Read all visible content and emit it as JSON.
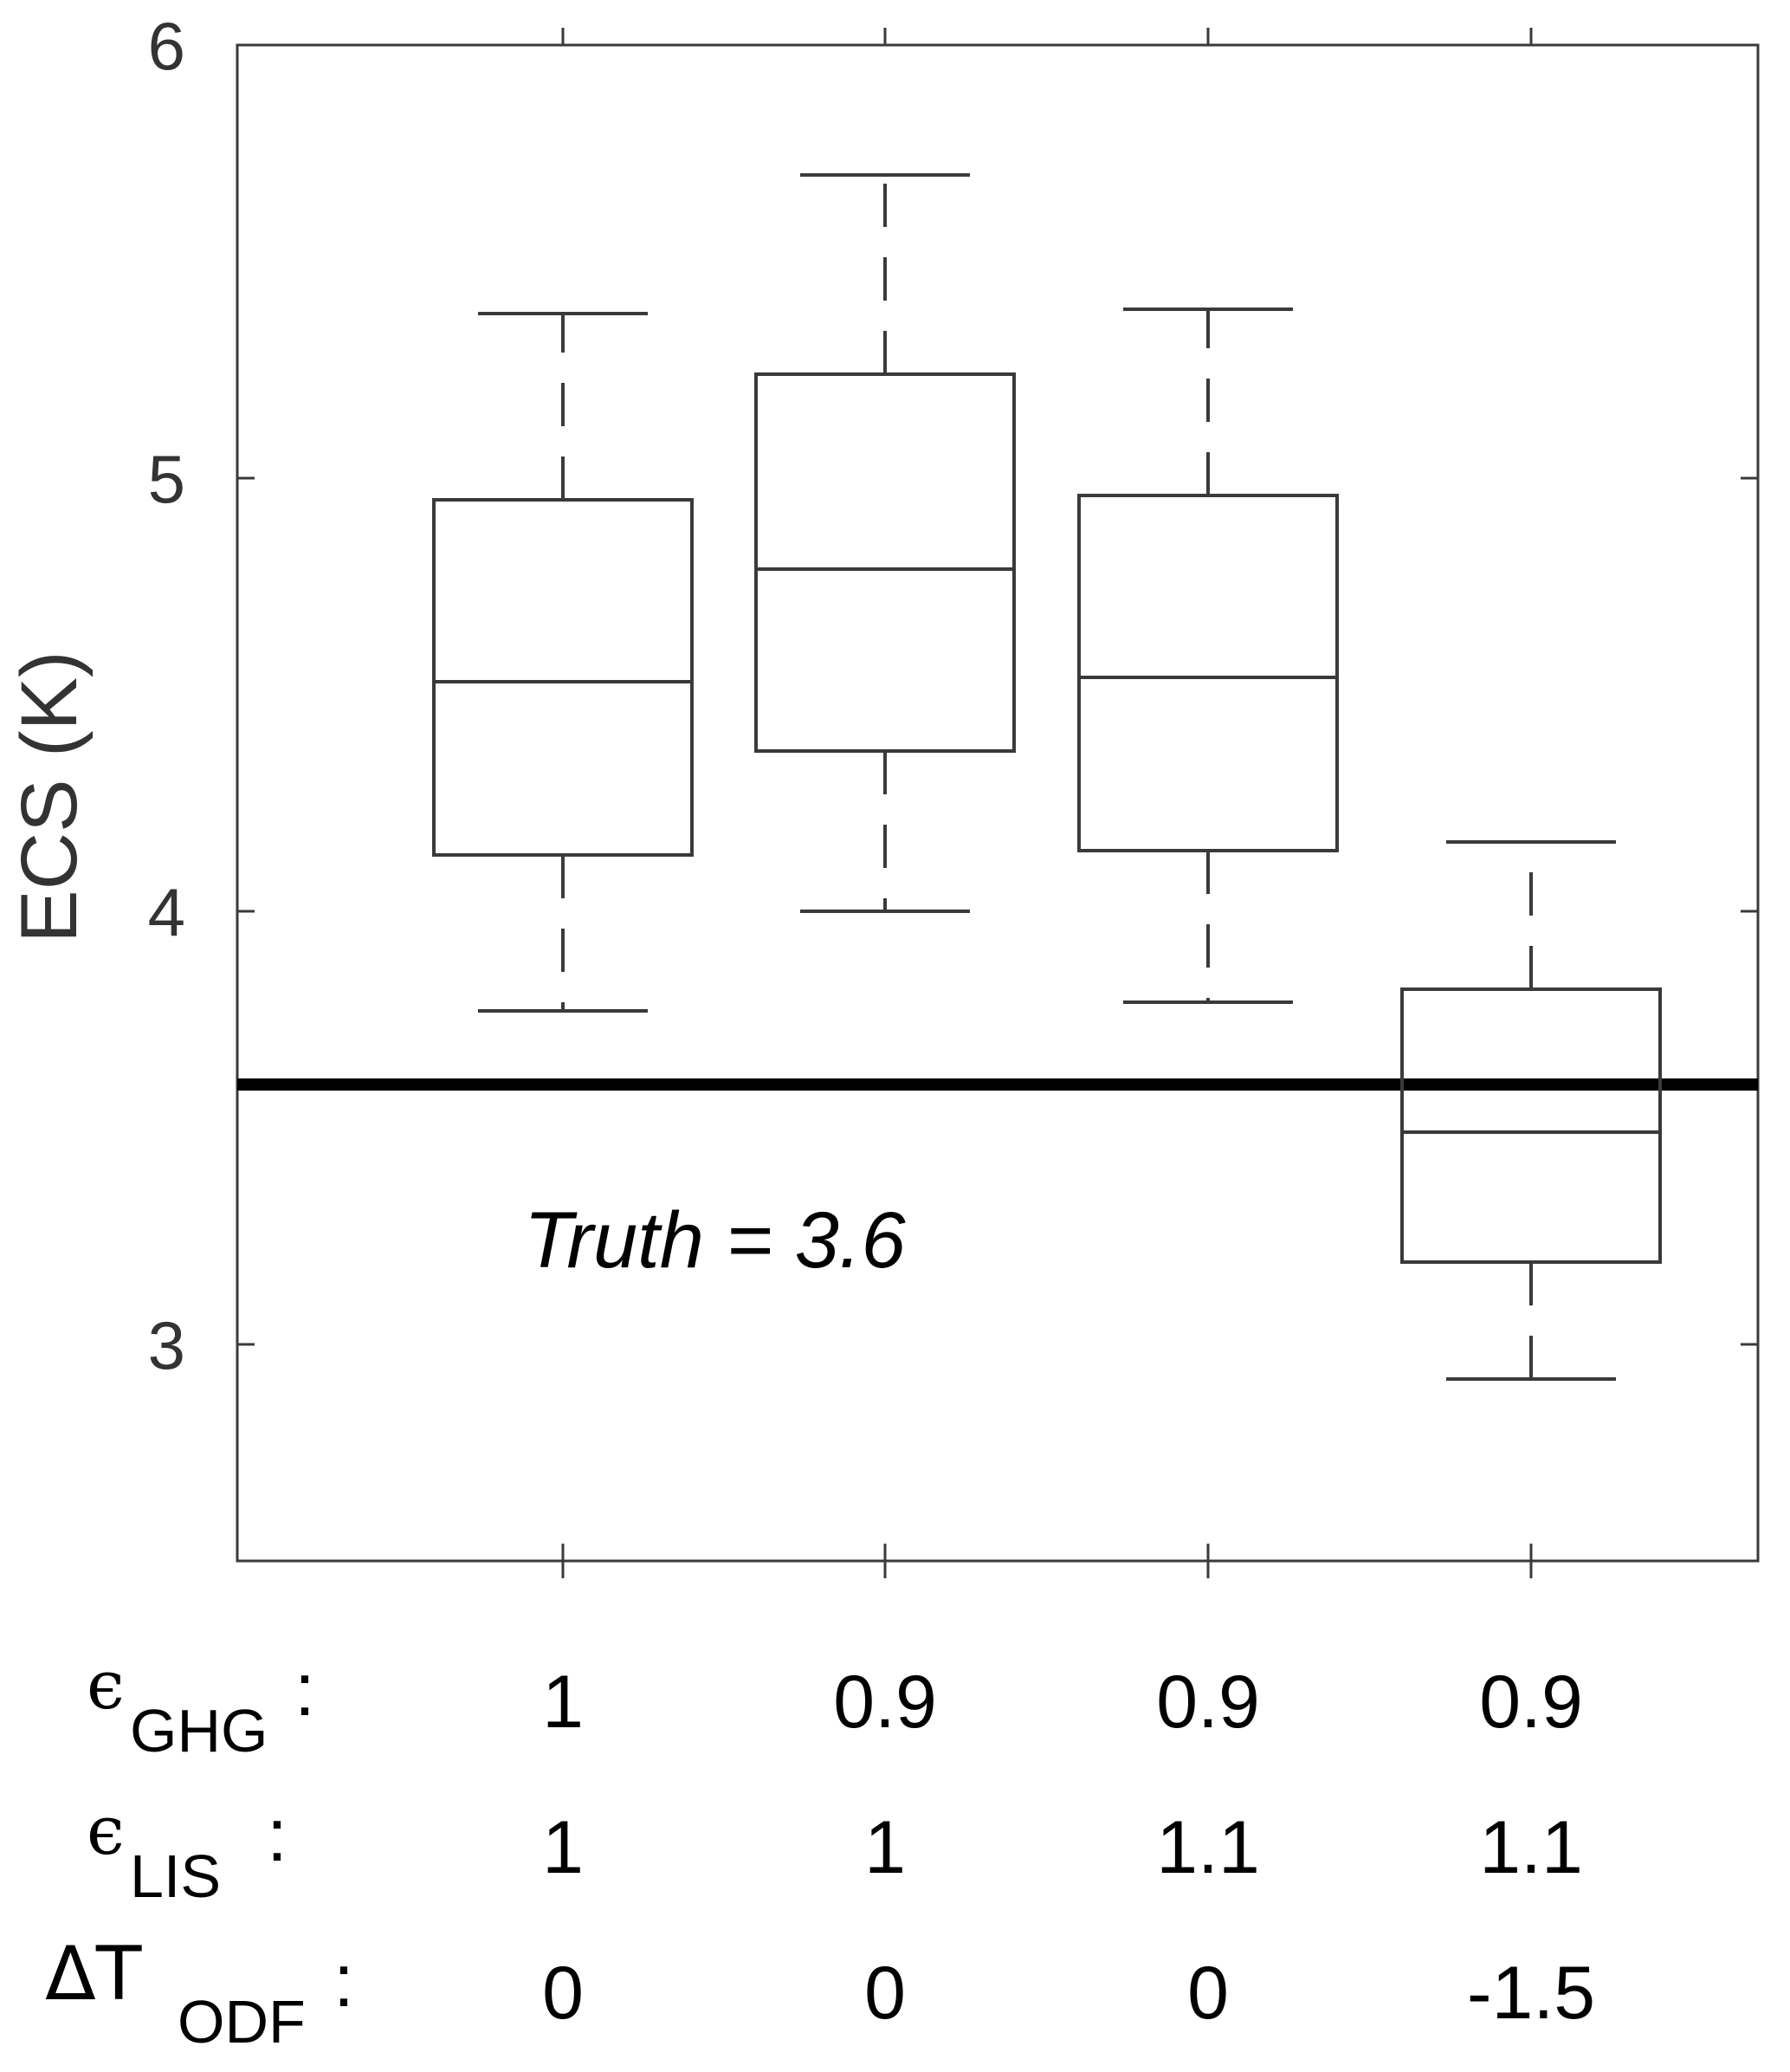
{
  "chart_data": {
    "type": "box",
    "ylabel": "ECS (K)",
    "ylim": [
      2.5,
      6.0
    ],
    "yticks": [
      "3",
      "4",
      "5",
      "6"
    ],
    "grid": false,
    "annotation": "Truth = 3.6",
    "reference_line": 3.6,
    "boxes": [
      {
        "whisker_low": 3.77,
        "q1": 4.13,
        "median": 4.53,
        "q3": 4.95,
        "whisker_high": 5.38
      },
      {
        "whisker_low": 4.0,
        "q1": 4.37,
        "median": 4.79,
        "q3": 5.24,
        "whisker_high": 5.7
      },
      {
        "whisker_low": 3.79,
        "q1": 4.14,
        "median": 4.54,
        "q3": 4.96,
        "whisker_high": 5.39
      },
      {
        "whisker_low": 2.92,
        "q1": 3.19,
        "median": 3.49,
        "q3": 3.82,
        "whisker_high": 4.16
      }
    ],
    "parameter_table": [
      {
        "symbol": "ϵ",
        "subscript": "GHG",
        "colon": ":",
        "values": [
          "1",
          "0.9",
          "0.9",
          "0.9"
        ]
      },
      {
        "symbol": "ϵ",
        "subscript": "LIS",
        "colon": ":",
        "values": [
          "1",
          "1",
          "1.1",
          "1.1"
        ]
      },
      {
        "symbol": "ΔT",
        "subscript": "ODF",
        "colon": ":",
        "values": [
          "0",
          "0",
          "0",
          "-1.5"
        ]
      }
    ]
  }
}
